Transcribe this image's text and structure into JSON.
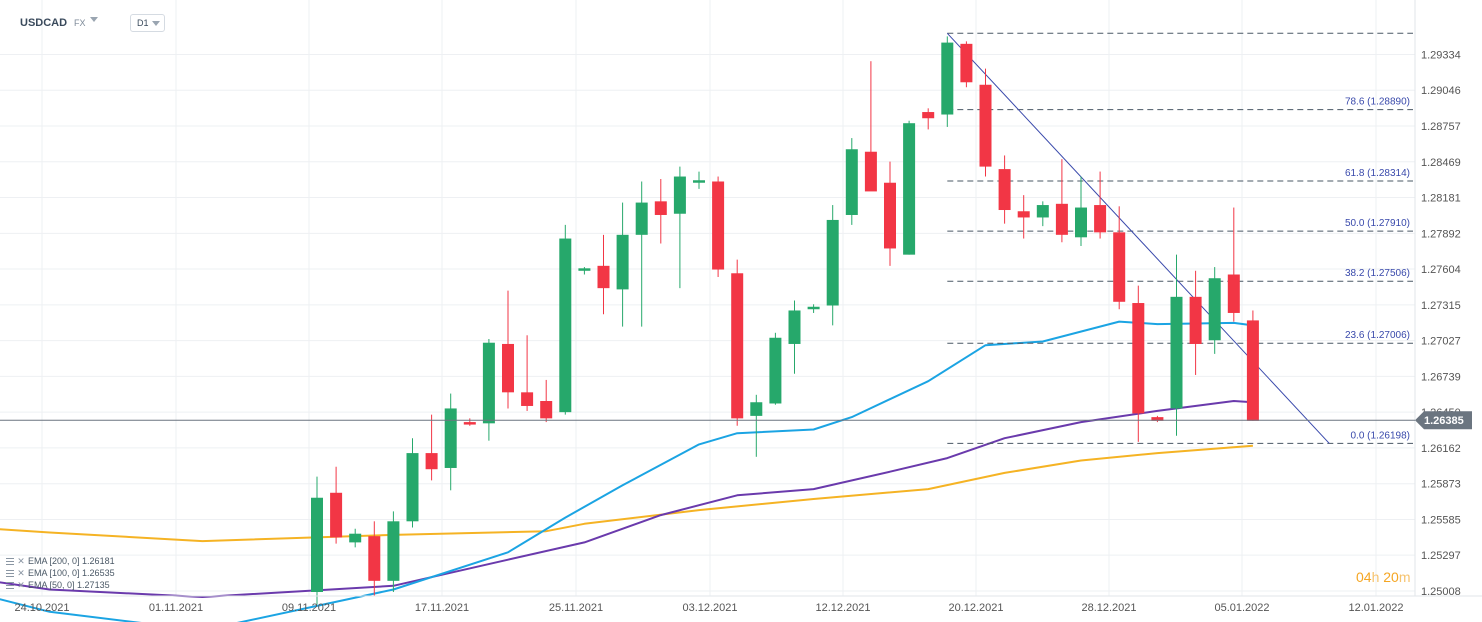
{
  "header": {
    "symbol": "USDCAD",
    "market": "FX",
    "timeframe": "D1"
  },
  "countdown": {
    "hours": "04",
    "h_unit": "h",
    "minutes": "20",
    "m_unit": "m"
  },
  "colors": {
    "up": "#26a86b",
    "down": "#f23645",
    "ema50": "#1ba4e3",
    "ema100": "#6a3aac",
    "ema200": "#f5b324",
    "fib": "#3949ab",
    "trendline": "#3949ab",
    "current_price_bg": "#6b7580",
    "grid": "#eef0f3",
    "countdown": "#f5a623"
  },
  "chart_data": {
    "type": "candlestick",
    "ylim": [
      1.249,
      1.2958
    ],
    "y_ticks": [
      "1.29334",
      "1.29046",
      "1.28757",
      "1.28469",
      "1.28181",
      "1.27892",
      "1.27604",
      "1.27315",
      "1.27027",
      "1.26739",
      "1.26450",
      "1.26162",
      "1.25873",
      "1.25585",
      "1.25297",
      "1.25008"
    ],
    "x_ticks": [
      "24.10.2021",
      "01.11.2021",
      "09.11.2021",
      "17.11.2021",
      "25.11.2021",
      "03.12.2021",
      "12.12.2021",
      "20.12.2021",
      "28.12.2021",
      "05.01.2022",
      "12.01.2022"
    ],
    "current_price": "1.26385",
    "candles": [
      {
        "date": "05.11.2021",
        "o": 1.25,
        "h": 1.2593,
        "l": 1.249,
        "c": 1.2576
      },
      {
        "date": "08.11.2021",
        "o": 1.258,
        "h": 1.2601,
        "l": 1.2539,
        "c": 1.2544
      },
      {
        "date": "09.11.2021",
        "o": 1.254,
        "h": 1.2551,
        "l": 1.2536,
        "c": 1.2547
      },
      {
        "date": "10.11.2021",
        "o": 1.2545,
        "h": 1.2557,
        "l": 1.2497,
        "c": 1.2509
      },
      {
        "date": "11.11.2021",
        "o": 1.2509,
        "h": 1.2565,
        "l": 1.25,
        "c": 1.2557
      },
      {
        "date": "12.11.2021",
        "o": 1.2557,
        "h": 1.2624,
        "l": 1.2552,
        "c": 1.2612
      },
      {
        "date": "15.11.2021",
        "o": 1.2612,
        "h": 1.2643,
        "l": 1.259,
        "c": 1.2599
      },
      {
        "date": "16.11.2021",
        "o": 1.26,
        "h": 1.266,
        "l": 1.2582,
        "c": 1.2648
      },
      {
        "date": "17.11.2021",
        "o": 1.2637,
        "h": 1.264,
        "l": 1.2634,
        "c": 1.2635
      },
      {
        "date": "18.11.2021",
        "o": 1.2636,
        "h": 1.2704,
        "l": 1.2622,
        "c": 1.2701
      },
      {
        "date": "19.11.2021",
        "o": 1.27,
        "h": 1.2743,
        "l": 1.2648,
        "c": 1.2661
      },
      {
        "date": "22.11.2021",
        "o": 1.2661,
        "h": 1.2707,
        "l": 1.2646,
        "c": 1.265
      },
      {
        "date": "23.11.2021",
        "o": 1.2654,
        "h": 1.2671,
        "l": 1.2637,
        "c": 1.264
      },
      {
        "date": "24.11.2021",
        "o": 1.2645,
        "h": 1.2796,
        "l": 1.2643,
        "c": 1.2785
      },
      {
        "date": "25.11.2021",
        "o": 1.2759,
        "h": 1.2762,
        "l": 1.2756,
        "c": 1.2761
      },
      {
        "date": "26.11.2021",
        "o": 1.2763,
        "h": 1.2788,
        "l": 1.2724,
        "c": 1.2745
      },
      {
        "date": "29.11.2021",
        "o": 1.2744,
        "h": 1.2814,
        "l": 1.2714,
        "c": 1.2788
      },
      {
        "date": "30.11.2021",
        "o": 1.2788,
        "h": 1.2831,
        "l": 1.2714,
        "c": 1.2814
      },
      {
        "date": "01.12.2021",
        "o": 1.2815,
        "h": 1.2833,
        "l": 1.2781,
        "c": 1.2804
      },
      {
        "date": "02.12.2021",
        "o": 1.2805,
        "h": 1.2843,
        "l": 1.2745,
        "c": 1.2835
      },
      {
        "date": "03.12.2021",
        "o": 1.283,
        "h": 1.2839,
        "l": 1.2825,
        "c": 1.2832
      },
      {
        "date": "06.12.2021",
        "o": 1.2831,
        "h": 1.2835,
        "l": 1.2754,
        "c": 1.276
      },
      {
        "date": "07.12.2021",
        "o": 1.2757,
        "h": 1.2768,
        "l": 1.2634,
        "c": 1.264
      },
      {
        "date": "08.12.2021",
        "o": 1.2642,
        "h": 1.2659,
        "l": 1.2609,
        "c": 1.2653
      },
      {
        "date": "09.12.2021",
        "o": 1.2652,
        "h": 1.2709,
        "l": 1.2651,
        "c": 1.2705
      },
      {
        "date": "10.12.2021",
        "o": 1.27,
        "h": 1.2735,
        "l": 1.2676,
        "c": 1.2727
      },
      {
        "date": "13.12.2021",
        "o": 1.2728,
        "h": 1.2732,
        "l": 1.2725,
        "c": 1.273
      },
      {
        "date": "14.12.2021",
        "o": 1.2731,
        "h": 1.2812,
        "l": 1.2715,
        "c": 1.28
      },
      {
        "date": "15.12.2021",
        "o": 1.2804,
        "h": 1.2866,
        "l": 1.2796,
        "c": 1.2857
      },
      {
        "date": "16.12.2021",
        "o": 1.2855,
        "h": 1.2928,
        "l": 1.2826,
        "c": 1.2823
      },
      {
        "date": "17.12.2021",
        "o": 1.283,
        "h": 1.2847,
        "l": 1.2763,
        "c": 1.2777
      },
      {
        "date": "20.12.2021",
        "o": 1.2772,
        "h": 1.288,
        "l": 1.2772,
        "c": 1.2878
      },
      {
        "date": "21.12.2021",
        "o": 1.2887,
        "h": 1.289,
        "l": 1.2873,
        "c": 1.2882
      },
      {
        "date": "22.12.2021",
        "o": 1.2885,
        "h": 1.2948,
        "l": 1.2875,
        "c": 1.2943
      },
      {
        "date": "23.12.2021",
        "o": 1.2942,
        "h": 1.2944,
        "l": 1.2907,
        "c": 1.2911
      },
      {
        "date": "24.12.2021",
        "o": 1.2909,
        "h": 1.2922,
        "l": 1.2835,
        "c": 1.2843
      },
      {
        "date": "27.12.2021",
        "o": 1.2841,
        "h": 1.2852,
        "l": 1.2797,
        "c": 1.2808
      },
      {
        "date": "28.12.2021",
        "o": 1.2807,
        "h": 1.282,
        "l": 1.2785,
        "c": 1.2802
      },
      {
        "date": "29.12.2021",
        "o": 1.2802,
        "h": 1.2815,
        "l": 1.2795,
        "c": 1.2812
      },
      {
        "date": "30.12.2021",
        "o": 1.2813,
        "h": 1.2849,
        "l": 1.2782,
        "c": 1.2788
      },
      {
        "date": "31.12.2021",
        "o": 1.2786,
        "h": 1.2835,
        "l": 1.2779,
        "c": 1.281
      },
      {
        "date": "03.01.2022",
        "o": 1.2812,
        "h": 1.2839,
        "l": 1.2785,
        "c": 1.279
      },
      {
        "date": "04.01.2022",
        "o": 1.279,
        "h": 1.2811,
        "l": 1.2728,
        "c": 1.2734
      },
      {
        "date": "05.01.2022",
        "o": 1.2733,
        "h": 1.2747,
        "l": 1.2621,
        "c": 1.2644
      },
      {
        "date": "06.01.2022",
        "o": 1.2641,
        "h": 1.2642,
        "l": 1.2637,
        "c": 1.2638
      },
      {
        "date": "07.01.2022",
        "o": 1.2648,
        "h": 1.2772,
        "l": 1.2626,
        "c": 1.2738
      },
      {
        "date": "10.01.2022",
        "o": 1.2738,
        "h": 1.2759,
        "l": 1.2675,
        "c": 1.27
      },
      {
        "date": "11.01.2022",
        "o": 1.2703,
        "h": 1.2762,
        "l": 1.2692,
        "c": 1.2753
      },
      {
        "date": "12.01.2022",
        "o": 1.2756,
        "h": 1.281,
        "l": 1.2718,
        "c": 1.2725
      },
      {
        "date": "13.01.2022",
        "o": 1.2719,
        "h": 1.2727,
        "l": 1.2638,
        "c": 1.2638
      }
    ],
    "indicators": [
      {
        "name": "EMA [200, 0]",
        "value": "1.26181",
        "color": "#f5b324",
        "points": [
          [
            -24,
            1.2558
          ],
          [
            -14,
            1.2548
          ],
          [
            -6,
            1.2541
          ],
          [
            4,
            1.2546
          ],
          [
            12,
            1.2549
          ],
          [
            14,
            1.2555
          ],
          [
            20,
            1.2566
          ],
          [
            26,
            1.2575
          ],
          [
            32,
            1.2583
          ],
          [
            36,
            1.2596
          ],
          [
            40,
            1.2606
          ],
          [
            44,
            1.2612
          ],
          [
            49,
            1.2618
          ]
        ]
      },
      {
        "name": "EMA [100, 0]",
        "value": "1.26535",
        "color": "#6a3aac",
        "points": [
          [
            -24,
            1.2524
          ],
          [
            -14,
            1.2502
          ],
          [
            -6,
            1.2496
          ],
          [
            4,
            1.2505
          ],
          [
            10,
            1.2526
          ],
          [
            14,
            1.254
          ],
          [
            18,
            1.2562
          ],
          [
            22,
            1.2578
          ],
          [
            26,
            1.2583
          ],
          [
            30,
            1.2597
          ],
          [
            33,
            1.2608
          ],
          [
            36,
            1.2624
          ],
          [
            40,
            1.2637
          ],
          [
            44,
            1.2646
          ],
          [
            48,
            1.2654
          ],
          [
            49,
            1.2653
          ]
        ]
      },
      {
        "name": "EMA [50, 0]",
        "value": "1.27135",
        "color": "#1ba4e3",
        "points": [
          [
            -24,
            1.2523
          ],
          [
            -14,
            1.2484
          ],
          [
            -6,
            1.2469
          ],
          [
            4,
            1.2502
          ],
          [
            10,
            1.2532
          ],
          [
            13,
            1.256
          ],
          [
            16,
            1.2586
          ],
          [
            20,
            1.2619
          ],
          [
            22,
            1.2628
          ],
          [
            26,
            1.2631
          ],
          [
            28,
            1.2641
          ],
          [
            32,
            1.267
          ],
          [
            35,
            1.2699
          ],
          [
            38,
            1.2702
          ],
          [
            42,
            1.2718
          ],
          [
            44,
            1.2716
          ],
          [
            48,
            1.2717
          ],
          [
            49,
            1.2715
          ]
        ]
      }
    ],
    "fibonacci": [
      {
        "label": "78.6 (1.28890)",
        "value": 1.2889
      },
      {
        "label": "61.8 (1.28314)",
        "value": 1.28314
      },
      {
        "label": "50.0 (1.27910)",
        "value": 1.2791
      },
      {
        "label": "38.2 (1.27506)",
        "value": 1.27506
      },
      {
        "label": "23.6 (1.27006)",
        "value": 1.27006
      },
      {
        "label": "0.0 (1.26198)",
        "value": 1.26198
      }
    ],
    "fib_high": 1.29505,
    "fib_start": 33,
    "trendline": {
      "from": [
        33,
        1.29505
      ],
      "to": [
        53,
        1.26198
      ]
    },
    "grid": true
  }
}
